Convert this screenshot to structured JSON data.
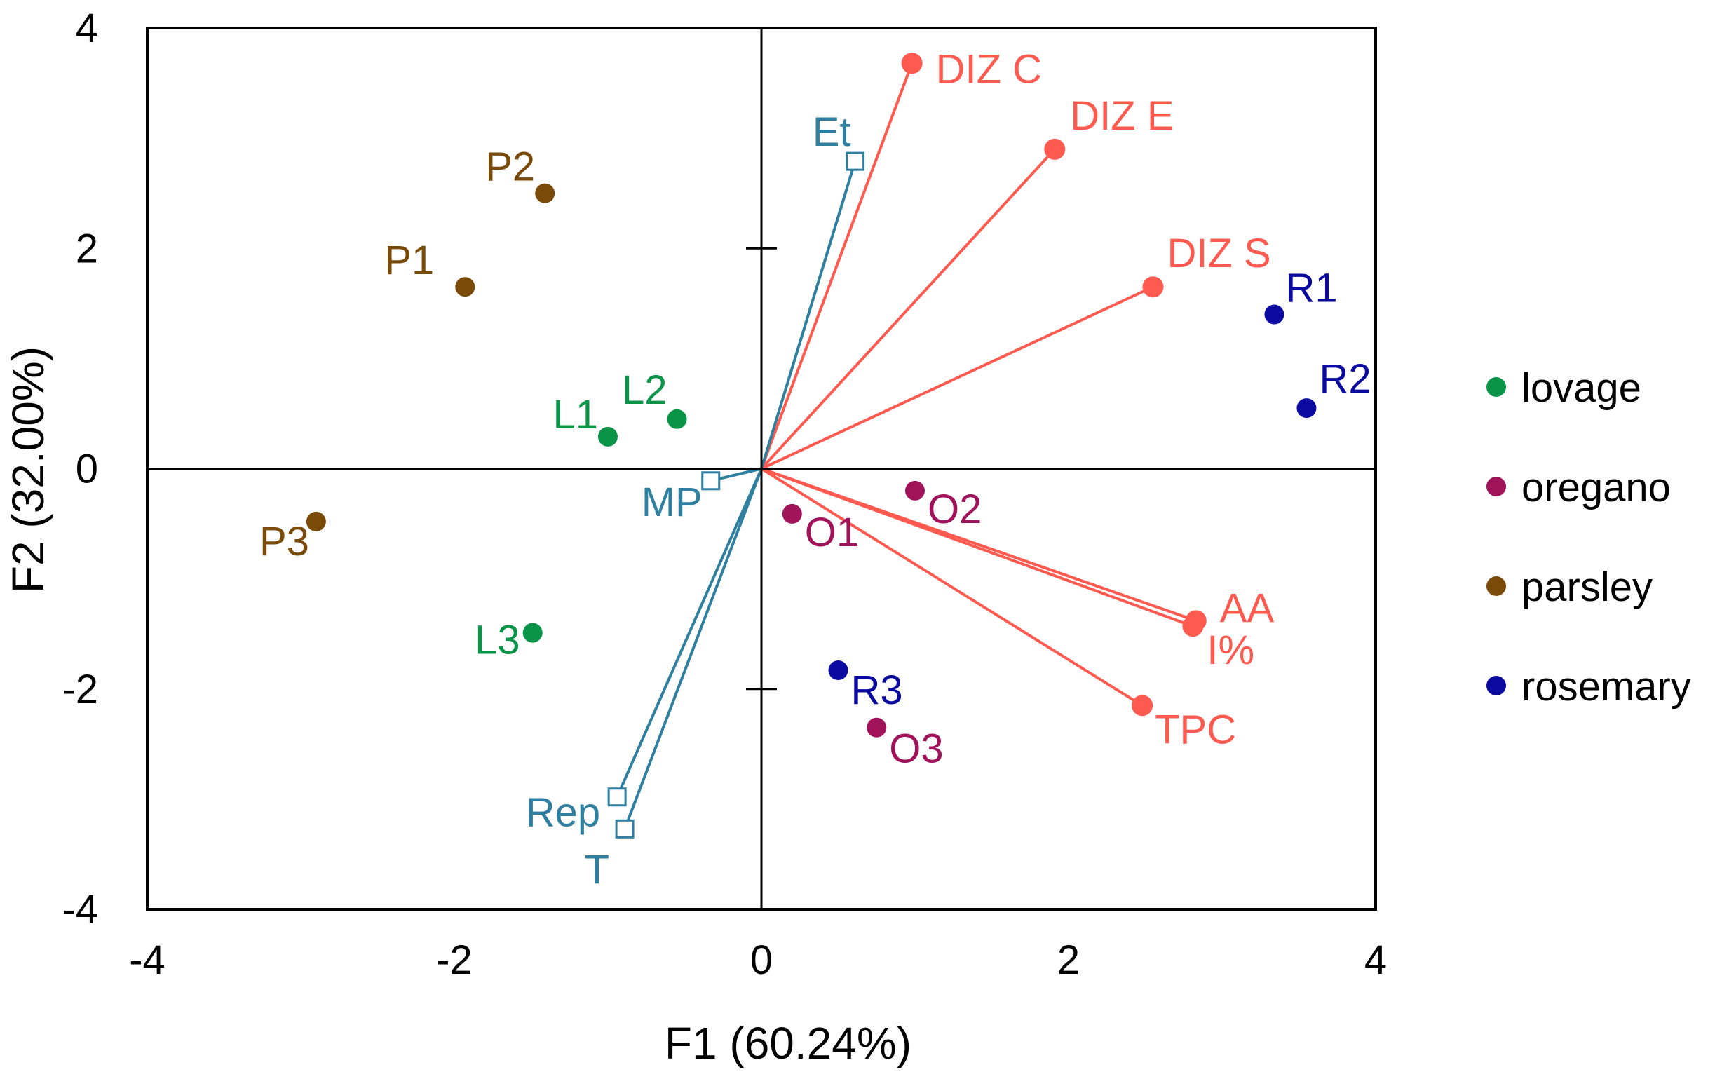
{
  "chart_data": {
    "type": "scatter",
    "subtype": "biplot",
    "title": "",
    "xlabel": "F1 (60.24%)",
    "ylabel": "F2 (32.00%)",
    "xlim": [
      -4,
      4
    ],
    "ylim": [
      -4,
      4
    ],
    "x_ticks": [
      -4,
      -2,
      0,
      2,
      4
    ],
    "y_ticks": [
      -4,
      -2,
      0,
      2,
      4
    ],
    "x_tick_labels": [
      "-4",
      "-2",
      "0",
      "2",
      "4"
    ],
    "y_tick_labels": [
      "-4",
      "-2",
      "0",
      "2",
      "4"
    ],
    "grid": false,
    "legend_position": "right",
    "colors": {
      "lovage": "#0a9448",
      "oregano": "#a0125a",
      "parsley": "#7a4a08",
      "rosemary": "#0a0aa0",
      "active_vars": "#ff5a50",
      "supplementary_vars": "#2f7fa0",
      "axis": "#000000"
    },
    "legend": [
      {
        "label": "lovage",
        "group": "lovage"
      },
      {
        "label": "oregano",
        "group": "oregano"
      },
      {
        "label": "parsley",
        "group": "parsley"
      },
      {
        "label": "rosemary",
        "group": "rosemary"
      }
    ],
    "observations": [
      {
        "label": "P1",
        "group": "parsley",
        "x": -1.93,
        "y": 1.65
      },
      {
        "label": "P2",
        "group": "parsley",
        "x": -1.41,
        "y": 2.5
      },
      {
        "label": "P3",
        "group": "parsley",
        "x": -2.9,
        "y": -0.48
      },
      {
        "label": "L1",
        "group": "lovage",
        "x": -1.0,
        "y": 0.29
      },
      {
        "label": "L2",
        "group": "lovage",
        "x": -0.55,
        "y": 0.45
      },
      {
        "label": "L3",
        "group": "lovage",
        "x": -1.49,
        "y": -1.49
      },
      {
        "label": "O1",
        "group": "oregano",
        "x": 0.2,
        "y": -0.41
      },
      {
        "label": "O2",
        "group": "oregano",
        "x": 1.0,
        "y": -0.2
      },
      {
        "label": "O3",
        "group": "oregano",
        "x": 0.75,
        "y": -2.35
      },
      {
        "label": "R1",
        "group": "rosemary",
        "x": 3.34,
        "y": 1.4
      },
      {
        "label": "R2",
        "group": "rosemary",
        "x": 3.55,
        "y": 0.55
      },
      {
        "label": "R3",
        "group": "rosemary",
        "x": 0.5,
        "y": -1.83
      }
    ],
    "active_variables": [
      {
        "label": "DIZ C",
        "x": 0.98,
        "y": 3.68
      },
      {
        "label": "DIZ E",
        "x": 1.91,
        "y": 2.9
      },
      {
        "label": "DIZ S",
        "x": 2.55,
        "y": 1.65
      },
      {
        "label": "AA",
        "x": 2.83,
        "y": -1.38
      },
      {
        "label": "I%",
        "x": 2.81,
        "y": -1.43
      },
      {
        "label": "TPC",
        "x": 2.48,
        "y": -2.15
      }
    ],
    "supplementary_variables": [
      {
        "label": "Et",
        "x": 0.61,
        "y": 2.79
      },
      {
        "label": "MP",
        "x": -0.33,
        "y": -0.11
      },
      {
        "label": "Rep",
        "x": -0.94,
        "y": -2.98
      },
      {
        "label": "T",
        "x": -0.89,
        "y": -3.27
      }
    ]
  }
}
